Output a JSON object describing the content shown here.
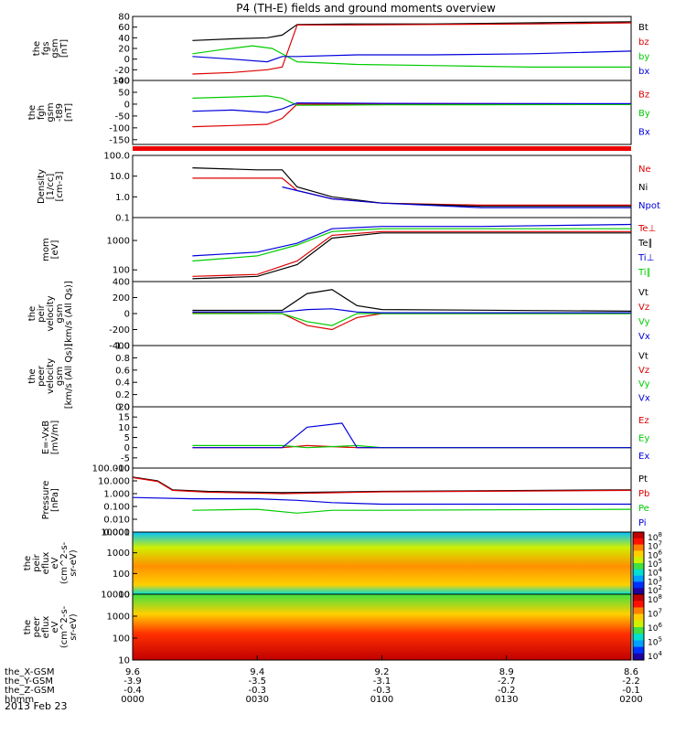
{
  "title": "P4 (TH-E) fields and ground moments overview",
  "date_label": "2013 Feb 23",
  "chart_data": {
    "type": "line",
    "time_range_hhmm": [
      "0000",
      "0200"
    ],
    "x_ticks": {
      "labels": [
        "0000",
        "0030",
        "0100",
        "0130",
        "0200"
      ],
      "rows": [
        {
          "name": "the_X-GSM",
          "values": [
            "9.6",
            "9.4",
            "9.2",
            "8.9",
            "8.6"
          ]
        },
        {
          "name": "the_Y-GSM",
          "values": [
            "-3.9",
            "-3.5",
            "-3.1",
            "-2.7",
            "-2.2"
          ]
        },
        {
          "name": "the_Z-GSM",
          "values": [
            "-0.4",
            "-0.3",
            "-0.3",
            "-0.2",
            "-0.1"
          ]
        },
        {
          "name": "hhmm",
          "values": [
            "0000",
            "0030",
            "0100",
            "0130",
            "0200"
          ]
        }
      ]
    },
    "panels": [
      {
        "id": "fgs",
        "ylabel": [
          "the",
          "fgs",
          "gsm",
          "[nT]"
        ],
        "ylim": [
          -40,
          80
        ],
        "ticks": [
          "80",
          "60",
          "40",
          "20",
          "0",
          "-20",
          "-40"
        ],
        "series": [
          {
            "name": "Bt",
            "color": "#000000",
            "t": [
              0.12,
              0.2,
              0.27,
              0.3,
              0.33,
              0.45,
              0.6,
              0.8,
              1.0
            ],
            "v": [
              35,
              38,
              40,
              45,
              65,
              66,
              66,
              68,
              70
            ]
          },
          {
            "name": "bz",
            "color": "#dd0000",
            "t": [
              0.12,
              0.2,
              0.27,
              0.3,
              0.33,
              0.45,
              0.6,
              0.8,
              1.0
            ],
            "v": [
              -28,
              -25,
              -20,
              -15,
              64,
              64,
              65,
              66,
              68
            ]
          },
          {
            "name": "by",
            "color": "#00cc00",
            "t": [
              0.12,
              0.18,
              0.24,
              0.28,
              0.33,
              0.45,
              0.6,
              0.8,
              1.0
            ],
            "v": [
              10,
              18,
              25,
              20,
              -5,
              -10,
              -12,
              -15,
              -15
            ]
          },
          {
            "name": "bx",
            "color": "#0000dd",
            "t": [
              0.12,
              0.2,
              0.27,
              0.3,
              0.33,
              0.45,
              0.6,
              0.8,
              1.0
            ],
            "v": [
              5,
              0,
              -5,
              5,
              5,
              8,
              8,
              10,
              15
            ]
          }
        ]
      },
      {
        "id": "fgh",
        "ylabel": [
          "the",
          "fgh",
          "gsm",
          "-t89",
          "[nT]"
        ],
        "ylim": [
          -170,
          100
        ],
        "ticks": [
          "100",
          "50",
          "0",
          "-50",
          "-100",
          "-150"
        ],
        "series": [
          {
            "name": "Bz",
            "color": "#dd0000",
            "t": [
              0.12,
              0.2,
              0.27,
              0.3,
              0.33,
              0.5,
              1.0
            ],
            "v": [
              -95,
              -90,
              -85,
              -60,
              0,
              0,
              0
            ]
          },
          {
            "name": "By",
            "color": "#00cc00",
            "t": [
              0.12,
              0.2,
              0.27,
              0.3,
              0.33,
              0.5,
              1.0
            ],
            "v": [
              25,
              30,
              35,
              25,
              -5,
              -3,
              -2
            ]
          },
          {
            "name": "Bx",
            "color": "#0000dd",
            "t": [
              0.12,
              0.2,
              0.27,
              0.3,
              0.33,
              0.5,
              1.0
            ],
            "v": [
              -30,
              -25,
              -35,
              -20,
              5,
              3,
              2
            ]
          }
        ]
      },
      {
        "id": "density",
        "log": true,
        "ylabel": [
          "Density",
          "[1/cc]",
          "[cm-3]"
        ],
        "ylim": [
          0.1,
          100
        ],
        "ticks": [
          "100.0",
          "10.0",
          "1.0",
          "0.1"
        ],
        "series": [
          {
            "name": "Ne",
            "color": "#dd0000",
            "t": [
              0.12,
              0.25,
              0.3,
              0.33,
              0.4,
              0.5,
              0.7,
              1.0
            ],
            "v": [
              8,
              8,
              8,
              2,
              0.8,
              0.5,
              0.4,
              0.4
            ]
          },
          {
            "name": "Ni",
            "color": "#000000",
            "t": [
              0.12,
              0.25,
              0.3,
              0.33,
              0.4,
              0.5,
              0.7,
              1.0
            ],
            "v": [
              25,
              20,
              20,
              3,
              1,
              0.5,
              0.35,
              0.35
            ]
          },
          {
            "name": "Npot",
            "color": "#0000dd",
            "t": [
              0.3,
              0.33,
              0.4,
              0.5,
              0.7,
              1.0
            ],
            "v": [
              3,
              2,
              0.8,
              0.5,
              0.3,
              0.3
            ]
          }
        ]
      },
      {
        "id": "mom",
        "log": true,
        "ylabel": [
          "mom",
          "[eV]"
        ],
        "ylim": [
          40,
          6000
        ],
        "ticks": [
          "1000",
          "100"
        ],
        "series": [
          {
            "name": "Te⊥",
            "color": "#dd0000",
            "t": [
              0.12,
              0.25,
              0.33,
              0.4,
              0.5,
              0.7,
              1.0
            ],
            "v": [
              60,
              70,
              200,
              1500,
              2000,
              2000,
              2000
            ]
          },
          {
            "name": "Te∥",
            "color": "#000000",
            "t": [
              0.12,
              0.25,
              0.33,
              0.4,
              0.5,
              0.7,
              1.0
            ],
            "v": [
              50,
              60,
              150,
              1200,
              1800,
              1800,
              1800
            ]
          },
          {
            "name": "Ti⊥",
            "color": "#0000dd",
            "t": [
              0.12,
              0.25,
              0.33,
              0.4,
              0.5,
              0.7,
              1.0
            ],
            "v": [
              300,
              400,
              800,
              2500,
              3000,
              3000,
              3500
            ]
          },
          {
            "name": "Ti∥",
            "color": "#00cc00",
            "t": [
              0.12,
              0.25,
              0.33,
              0.4,
              0.5,
              0.7,
              1.0
            ],
            "v": [
              200,
              300,
              700,
              2000,
              2500,
              2500,
              2500
            ]
          }
        ]
      },
      {
        "id": "peir_vel",
        "ylabel": [
          "the",
          "peir",
          "velocity",
          "gsm",
          "[km/s (All Qs)]"
        ],
        "ylim": [
          -400,
          400
        ],
        "ticks": [
          "400",
          "200",
          "0",
          "-200",
          "-400"
        ],
        "series": [
          {
            "name": "Vt",
            "color": "#000000",
            "t": [
              0.12,
              0.3,
              0.35,
              0.4,
              0.45,
              0.5,
              1.0
            ],
            "v": [
              40,
              40,
              250,
              300,
              100,
              50,
              30
            ]
          },
          {
            "name": "Vz",
            "color": "#dd0000",
            "t": [
              0.12,
              0.3,
              0.35,
              0.4,
              0.45,
              0.5,
              1.0
            ],
            "v": [
              10,
              0,
              -150,
              -200,
              -50,
              0,
              0
            ]
          },
          {
            "name": "Vy",
            "color": "#00cc00",
            "t": [
              0.12,
              0.3,
              0.35,
              0.4,
              0.45,
              0.5,
              1.0
            ],
            "v": [
              0,
              0,
              -100,
              -150,
              0,
              0,
              0
            ]
          },
          {
            "name": "Vx",
            "color": "#0000dd",
            "t": [
              0.12,
              0.3,
              0.35,
              0.4,
              0.45,
              0.5,
              1.0
            ],
            "v": [
              20,
              20,
              50,
              60,
              20,
              10,
              10
            ]
          }
        ]
      },
      {
        "id": "peer_vel",
        "ylabel": [
          "the",
          "peer",
          "velocity",
          "gsm",
          "[km/s (All Qs)]"
        ],
        "ylim": [
          0,
          1
        ],
        "ticks": [
          "1.0",
          "0.8",
          "0.6",
          "0.4",
          "0.2",
          "0.0"
        ],
        "legend": [
          "Vt",
          "Vz",
          "Vy",
          "Vx"
        ],
        "legend_colors": [
          "#000000",
          "#dd0000",
          "#00cc00",
          "#0000dd"
        ],
        "series": []
      },
      {
        "id": "efield",
        "ylabel": [
          "E=-VxB",
          "[mV/m]"
        ],
        "ylim": [
          -10,
          20
        ],
        "ticks": [
          "20",
          "15",
          "10",
          "5",
          "0",
          "-5",
          "-10"
        ],
        "series": [
          {
            "name": "Ez",
            "color": "#dd0000",
            "t": [
              0.12,
              0.3,
              0.35,
              0.45,
              0.5,
              1.0
            ],
            "v": [
              0,
              0,
              1,
              0,
              0,
              0
            ]
          },
          {
            "name": "Ey",
            "color": "#00cc00",
            "t": [
              0.12,
              0.3,
              0.35,
              0.45,
              0.5,
              1.0
            ],
            "v": [
              1,
              1,
              0,
              1,
              0,
              0
            ]
          },
          {
            "name": "Ex",
            "color": "#0000dd",
            "t": [
              0.12,
              0.3,
              0.35,
              0.42,
              0.45,
              0.5,
              1.0
            ],
            "v": [
              0,
              0,
              10,
              12,
              0,
              0,
              0
            ]
          }
        ]
      },
      {
        "id": "pressure",
        "log": true,
        "ylabel": [
          "Pressure",
          "[nPa]"
        ],
        "ylim": [
          0.001,
          100
        ],
        "ticks": [
          "100.000",
          "10.000",
          "1.000",
          "0.100",
          "0.010",
          "0.001"
        ],
        "series": [
          {
            "name": "Pt",
            "color": "#000000",
            "t": [
              0.0,
              0.05,
              0.08,
              0.15,
              0.3,
              0.5,
              1.0
            ],
            "v": [
              20,
              10,
              2,
              1.5,
              1.2,
              1.5,
              2
            ]
          },
          {
            "name": "Pb",
            "color": "#dd0000",
            "t": [
              0.0,
              0.05,
              0.08,
              0.15,
              0.3,
              0.5,
              1.0
            ],
            "v": [
              18,
              9,
              1.8,
              1.3,
              1.0,
              1.4,
              1.8
            ]
          },
          {
            "name": "Pe",
            "color": "#00cc00",
            "t": [
              0.12,
              0.25,
              0.33,
              0.4,
              0.5,
              1.0
            ],
            "v": [
              0.05,
              0.06,
              0.03,
              0.05,
              0.05,
              0.06
            ]
          },
          {
            "name": "Pi",
            "color": "#0000dd",
            "t": [
              0.0,
              0.12,
              0.25,
              0.33,
              0.4,
              0.5,
              1.0
            ],
            "v": [
              0.5,
              0.4,
              0.4,
              0.3,
              0.2,
              0.15,
              0.15
            ]
          }
        ]
      }
    ],
    "spectrograms": [
      {
        "id": "peir_eflux",
        "ylabel": [
          "the",
          "peir",
          "eflux",
          "eV",
          "(cm^2-s-",
          "sr-eV)"
        ],
        "ylim": [
          10,
          10000
        ],
        "ticks": [
          "10000",
          "1000",
          "100",
          "10"
        ],
        "colorbar_ticks": [
          "10^8",
          "10^7",
          "10^6",
          "10^5",
          "10^4",
          "10^3",
          "10^2"
        ]
      },
      {
        "id": "peer_eflux",
        "ylabel": [
          "the",
          "peer",
          "eflux",
          "eV",
          "(cm^2-s-",
          "sr-eV)"
        ],
        "ylim": [
          10,
          10000
        ],
        "ticks": [
          "10000",
          "1000",
          "100",
          "10"
        ],
        "colorbar_ticks": [
          "10^8",
          "10^7",
          "10^6",
          "10^5",
          "10^4"
        ]
      }
    ]
  }
}
